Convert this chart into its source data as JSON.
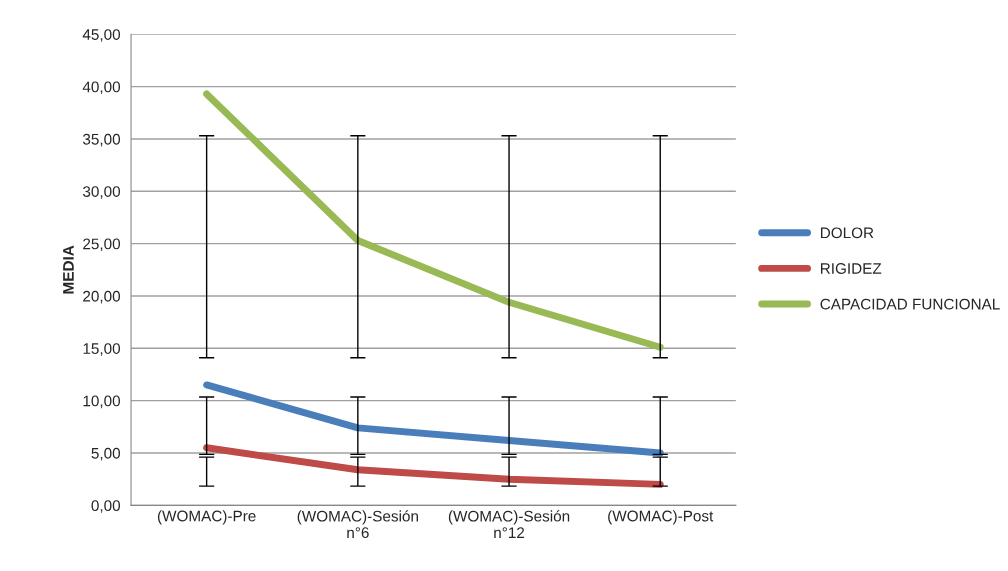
{
  "chart_data": {
    "type": "line",
    "ylabel": "MEDIA",
    "categories": [
      "(WOMAC)-Pre",
      "(WOMAC)-Sesión n°6",
      "(WOMAC)-Sesión n°12",
      "(WOMAC)-Post"
    ],
    "series": [
      {
        "name": "DOLOR",
        "color": "#4a7ebb",
        "values": [
          11.5,
          7.4,
          6.2,
          5.0
        ],
        "errors": [
          [
            4.87,
            10.35
          ],
          [
            4.87,
            10.35
          ],
          [
            4.87,
            10.35
          ],
          [
            4.87,
            10.35
          ]
        ]
      },
      {
        "name": "RIGIDEZ",
        "color": "#be4b48",
        "values": [
          5.5,
          3.4,
          2.5,
          2.0
        ],
        "errors": [
          [
            1.84,
            4.61
          ],
          [
            1.84,
            4.61
          ],
          [
            1.84,
            4.61
          ],
          [
            1.84,
            4.61
          ]
        ]
      },
      {
        "name": "CAPACIDAD FUNCIONAL",
        "color": "#98b954",
        "values": [
          39.3,
          25.3,
          19.4,
          15.1
        ],
        "errors": [
          [
            14.1,
            35.3
          ],
          [
            14.1,
            35.3
          ],
          [
            14.1,
            35.3
          ],
          [
            14.1,
            35.3
          ]
        ]
      }
    ],
    "ylim": [
      0,
      45
    ],
    "yticks": [
      {
        "value": 0,
        "label": "0,00"
      },
      {
        "value": 5,
        "label": "5,00"
      },
      {
        "value": 10,
        "label": "10,00"
      },
      {
        "value": 15,
        "label": "15,00"
      },
      {
        "value": 20,
        "label": "20,00"
      },
      {
        "value": 25,
        "label": "25,00"
      },
      {
        "value": 30,
        "label": "30,00"
      },
      {
        "value": 35,
        "label": "35,00"
      },
      {
        "value": 40,
        "label": "40,00"
      },
      {
        "value": 45,
        "label": "45,00"
      }
    ],
    "grid": "y",
    "legend": "right",
    "marker": "none",
    "line_style": "solid"
  }
}
